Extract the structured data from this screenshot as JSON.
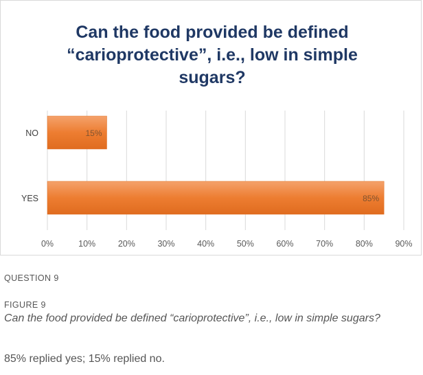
{
  "chart_data": {
    "type": "bar",
    "orientation": "horizontal",
    "title": "Can the food provided be defined “carioprotective”, i.e., low in simple sugars?",
    "categories": [
      "NO",
      "YES"
    ],
    "values": [
      15,
      85
    ],
    "data_labels": [
      "15%",
      "85%"
    ],
    "x_ticks": [
      "0%",
      "10%",
      "20%",
      "30%",
      "40%",
      "50%",
      "60%",
      "70%",
      "80%",
      "90%"
    ],
    "xlim": [
      0,
      90
    ],
    "grid": true,
    "bar_color": "#ed7d31"
  },
  "caption": {
    "question_label": "QUESTION 9",
    "figure_label": "FIGURE 9",
    "figure_title": "Can the food provided be defined “carioprotective”, i.e., low in simple sugars?",
    "summary": "85% replied yes; 15% replied no."
  }
}
